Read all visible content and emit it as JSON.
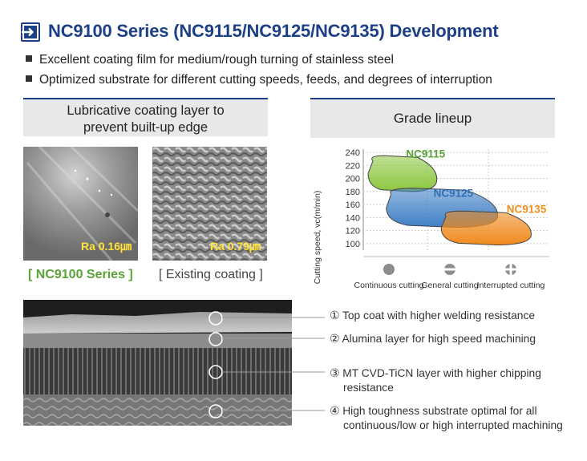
{
  "title": "NC9100 Series (NC9115/NC9125/NC9135) Development",
  "bullets": [
    "Excellent coating film for medium/rough turning of stainless steel",
    "Optimized substrate for different cutting speeds, feeds, and degrees of interruption"
  ],
  "left_panel": {
    "heading_line1": "Lubricative coating layer to",
    "heading_line2": "prevent built-up edge",
    "images": [
      {
        "roughness": "Ra 0.16㎛",
        "caption": "[ NC9100 Series ]"
      },
      {
        "roughness": "Ra 0.79㎛",
        "caption": "[ Existing coating ]"
      }
    ]
  },
  "right_panel": {
    "heading": "Grade lineup"
  },
  "chart_data": {
    "type": "area",
    "ylabel": "Cutting speed, vc(m/min)",
    "yticks": [
      100,
      120,
      140,
      160,
      180,
      200,
      220,
      240
    ],
    "ylim": [
      90,
      245
    ],
    "categories": [
      "Continuous cutting",
      "General cutting",
      "Interrupted cutting"
    ],
    "category_icons": [
      "continuous-cutting-icon",
      "general-cutting-icon",
      "interrupted-cutting-icon"
    ],
    "grid": true,
    "series": [
      {
        "name": "NC9115",
        "color": "#8cc63f",
        "speed_range": [
          180,
          235
        ],
        "x_range": [
          0.0,
          1.2
        ]
      },
      {
        "name": "NC9125",
        "color": "#3f7fc6",
        "speed_range": [
          125,
          185
        ],
        "x_range": [
          0.3,
          2.2
        ]
      },
      {
        "name": "NC9135",
        "color": "#f08a1c",
        "speed_range": [
          98,
          150
        ],
        "x_range": [
          1.2,
          2.75
        ]
      }
    ],
    "label_colors": {
      "NC9115": "#5aa336",
      "NC9125": "#2f6fb6",
      "NC9135": "#f0901c"
    }
  },
  "layers": [
    {
      "number": "①",
      "text": "Top coat with higher welding resistance"
    },
    {
      "number": "②",
      "text": "Alumina layer for high speed machining"
    },
    {
      "number": "③",
      "text": "MT CVD-TiCN layer with higher chipping",
      "text2": "resistance"
    },
    {
      "number": "④",
      "text": "High toughness substrate optimal for all",
      "text2": "continuous/low or high interrupted machining"
    }
  ]
}
